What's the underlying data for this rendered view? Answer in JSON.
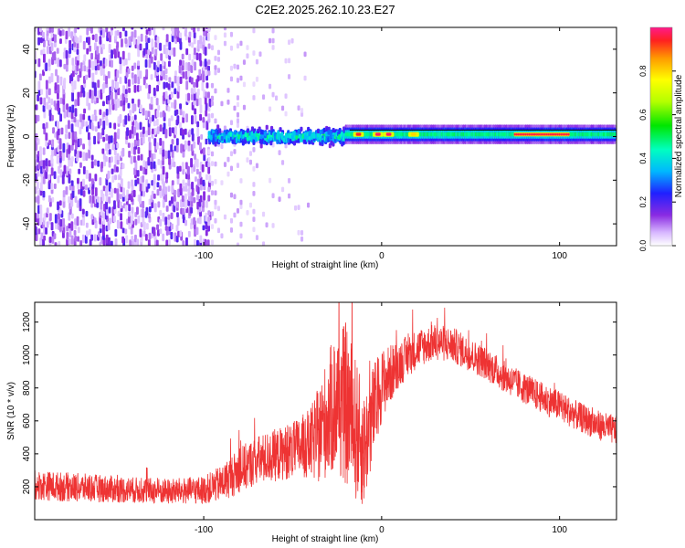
{
  "title": "C2E2.2025.262.10.23.E27",
  "chart_data": [
    {
      "type": "heatmap",
      "xlabel": "Height of straight line (km)",
      "ylabel": "Frequency (Hz)",
      "xlim": [
        -195,
        132
      ],
      "ylim": [
        -50,
        50
      ],
      "xticks": [
        -100,
        0,
        100
      ],
      "yticks": [
        -40,
        -20,
        0,
        20,
        40
      ],
      "colorbar": {
        "label": "Normalized spectral amplitude",
        "range": [
          0,
          1
        ],
        "ticks": [
          0.0,
          0.2,
          0.4,
          0.6,
          0.8
        ]
      },
      "features": [
        {
          "x_range": [
            -195,
            -97
          ],
          "freq_range": [
            -50,
            50
          ],
          "description_value": 0.25
        },
        {
          "x_range": [
            -97,
            -20
          ],
          "freq_range": [
            -10,
            10
          ],
          "description_value": 0.35
        },
        {
          "x_range": [
            -20,
            132
          ],
          "freq_center": 1,
          "description_value": 0.45
        },
        {
          "x": -13,
          "freq": 1,
          "description_value": 1.0
        },
        {
          "x": -2,
          "freq": 1,
          "description_value": 1.0
        },
        {
          "x": 4,
          "freq": 1,
          "description_value": 1.0
        },
        {
          "x_range": [
            75,
            105
          ],
          "freq": 1,
          "description_value": 1.0
        }
      ]
    },
    {
      "type": "line",
      "xlabel": "Height of straight line (km)",
      "ylabel": "SNR (10 * v/v)",
      "xlim": [
        -195,
        132
      ],
      "ylim": [
        0,
        1320
      ],
      "xticks": [
        -100,
        0,
        100
      ],
      "yticks": [
        200,
        400,
        600,
        800,
        1000,
        1200
      ],
      "series": [
        {
          "color": "#ee3333",
          "x": [
            -195,
            -180,
            -160,
            -140,
            -120,
            -100,
            -90,
            -80,
            -70,
            -60,
            -50,
            -40,
            -35,
            -30,
            -25,
            -20,
            -15,
            -10,
            -5,
            0,
            10,
            20,
            30,
            40,
            50,
            60,
            70,
            80,
            90,
            100,
            110,
            120,
            132
          ],
          "y": [
            210,
            200,
            190,
            180,
            170,
            180,
            220,
            300,
            360,
            390,
            420,
            460,
            520,
            640,
            720,
            700,
            560,
            420,
            640,
            820,
            950,
            1040,
            1080,
            1060,
            1000,
            940,
            860,
            800,
            740,
            690,
            630,
            580,
            540
          ],
          "noise": [
            90,
            90,
            85,
            80,
            80,
            85,
            110,
            140,
            150,
            160,
            170,
            220,
            300,
            380,
            450,
            500,
            450,
            350,
            300,
            220,
            140,
            120,
            110,
            110,
            100,
            100,
            95,
            95,
            95,
            95,
            90,
            90,
            90
          ]
        }
      ]
    }
  ]
}
